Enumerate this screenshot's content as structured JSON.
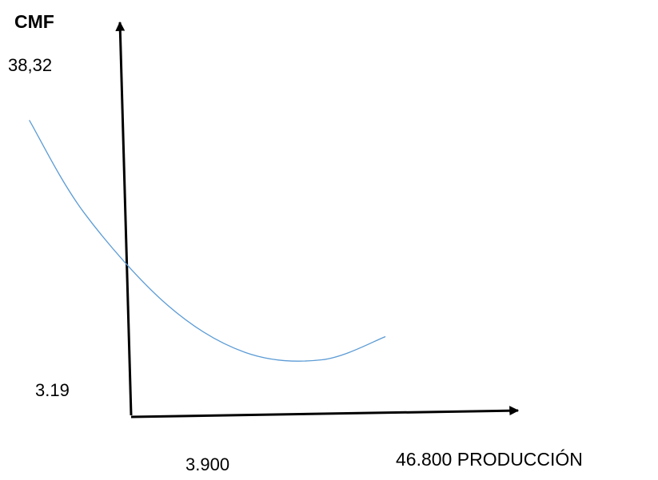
{
  "chart_data": {
    "type": "line",
    "title": "",
    "ylabel": "CMF",
    "xlabel": "PRODUCCIÓN",
    "y_ticks": [
      "38,32",
      "3.19"
    ],
    "x_ticks": [
      "3.900",
      "46.800"
    ],
    "ylim": [
      3.19,
      38.32
    ],
    "xlim": [
      3.9,
      46.8
    ],
    "grid": false,
    "legend": "none",
    "series": [
      {
        "color": "#5b9bd5",
        "shape": "u-curve",
        "x": [
          5.1,
          10.6,
          19.0,
          26.8,
          34.5,
          40.9
        ],
        "y": [
          32.5,
          22.5,
          12.5,
          7.4,
          6.6,
          9.1
        ]
      }
    ]
  },
  "colors": {
    "axis": "#000000",
    "curve": "#5b9bd5"
  }
}
